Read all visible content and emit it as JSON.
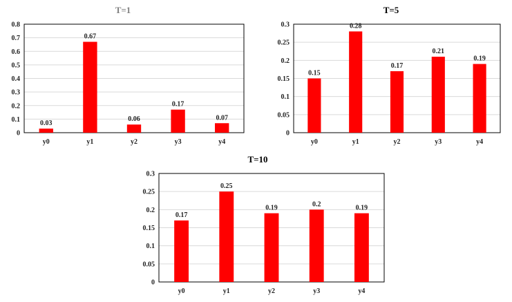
{
  "chart_data": [
    {
      "type": "bar",
      "title": "T=1",
      "title_color": "#808080",
      "categories": [
        "y0",
        "y1",
        "y2",
        "y3",
        "y4"
      ],
      "values": [
        0.03,
        0.67,
        0.06,
        0.17,
        0.07
      ],
      "value_labels": [
        "0.03",
        "0.67",
        "0.06",
        "0.17",
        "0.07"
      ],
      "ylim": [
        0,
        0.8
      ],
      "yticks": [
        "0",
        "0.1",
        "0.2",
        "0.3",
        "0.4",
        "0.5",
        "0.6",
        "0.7",
        "0.8"
      ],
      "grid": true,
      "bar_color": "#ff0000",
      "xlabel": "",
      "ylabel": ""
    },
    {
      "type": "bar",
      "title": "T=5",
      "title_color": "#000000",
      "categories": [
        "y0",
        "y1",
        "y2",
        "y3",
        "y4"
      ],
      "values": [
        0.15,
        0.28,
        0.17,
        0.21,
        0.19
      ],
      "value_labels": [
        "0.15",
        "0.28",
        "0.17",
        "0.21",
        "0.19"
      ],
      "ylim": [
        0,
        0.3
      ],
      "yticks": [
        "0",
        "0.05",
        "0.1",
        "0.15",
        "0.2",
        "0.25",
        "0.3"
      ],
      "grid": true,
      "bar_color": "#ff0000",
      "xlabel": "",
      "ylabel": ""
    },
    {
      "type": "bar",
      "title": "T=10",
      "title_color": "#000000",
      "categories": [
        "y0",
        "y1",
        "y2",
        "y3",
        "y4"
      ],
      "values": [
        0.17,
        0.25,
        0.19,
        0.2,
        0.19
      ],
      "value_labels": [
        "0.17",
        "0.25",
        "0.19",
        "0.2",
        "0.19"
      ],
      "ylim": [
        0,
        0.3
      ],
      "yticks": [
        "0",
        "0.05",
        "0.1",
        "0.15",
        "0.2",
        "0.25",
        "0.3"
      ],
      "grid": true,
      "bar_color": "#ff0000",
      "xlabel": "",
      "ylabel": ""
    }
  ]
}
